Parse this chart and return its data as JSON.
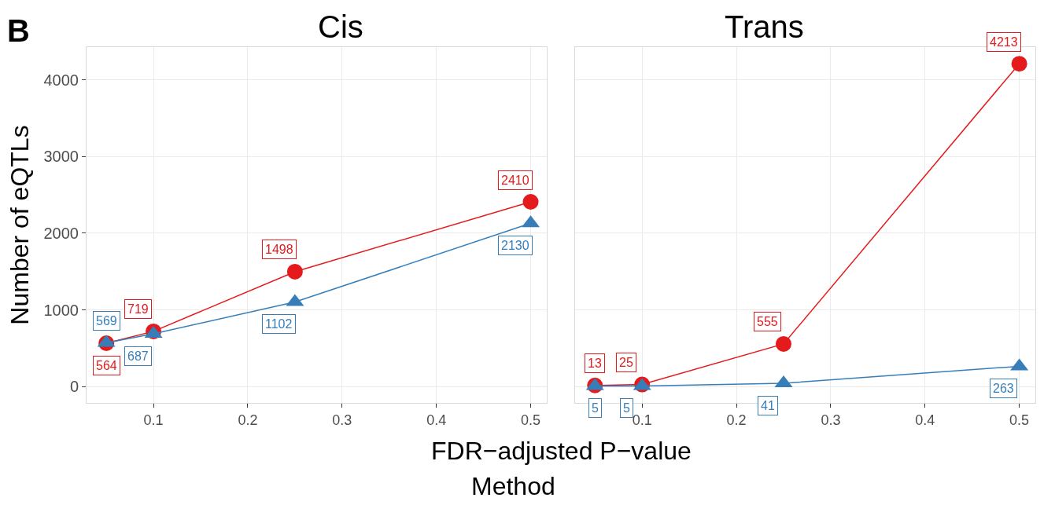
{
  "chart_data": [
    {
      "type": "line",
      "title": "Cis",
      "xlabel": "FDR−adjusted P−value",
      "ylabel": "Number of eQTLs",
      "annotations": [
        "B",
        "Method"
      ],
      "x": [
        0.05,
        0.1,
        0.25,
        0.5
      ],
      "xlim": [
        0.029,
        0.517
      ],
      "xticks": [
        0.1,
        0.2,
        0.3,
        0.4,
        0.5
      ],
      "ylim": [
        -215,
        4430
      ],
      "yticks": [
        0,
        1000,
        2000,
        3000,
        4000
      ],
      "grid": true,
      "data_labels": true,
      "line_style": "solid",
      "series": [
        {
          "color": "#e41a1c",
          "marker": "circle",
          "values": [
            564,
            719,
            1498,
            2410
          ]
        },
        {
          "color": "#377eb8",
          "marker": "triangle",
          "values": [
            569,
            687,
            1102,
            2130
          ]
        }
      ]
    },
    {
      "type": "line",
      "title": "Trans",
      "x": [
        0.05,
        0.1,
        0.25,
        0.5
      ],
      "xlim": [
        0.029,
        0.517
      ],
      "xticks": [
        0.1,
        0.2,
        0.3,
        0.4,
        0.5
      ],
      "ylim": [
        -215,
        4430
      ],
      "yticks": [
        0,
        1000,
        2000,
        3000,
        4000
      ],
      "tick_labels": "x",
      "grid": true,
      "data_labels": true,
      "line_style": "solid",
      "series": [
        {
          "color": "#e41a1c",
          "marker": "circle",
          "values": [
            13,
            25,
            555,
            4213
          ]
        },
        {
          "color": "#377eb8",
          "marker": "triangle",
          "values": [
            5,
            5,
            41,
            263
          ]
        }
      ]
    }
  ]
}
